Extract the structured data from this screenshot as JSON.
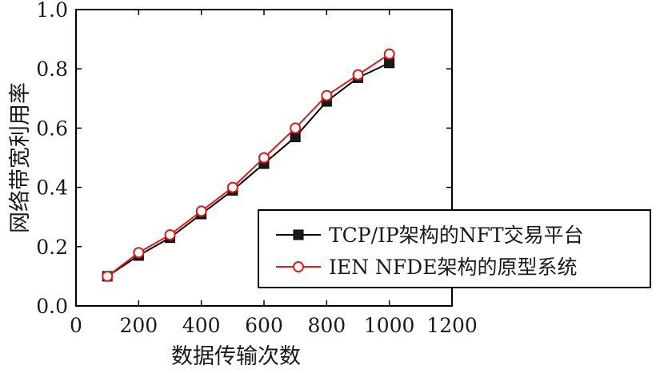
{
  "chart_data": {
    "type": "line",
    "xlabel": "数据传输次数",
    "ylabel": "网络带宽利用率",
    "xlim": [
      0,
      1200
    ],
    "ylim": [
      0,
      1.0
    ],
    "x_ticks": [
      "0",
      "200",
      "400",
      "600",
      "800",
      "1000",
      "1200"
    ],
    "y_ticks": [
      "0.0",
      "0.2",
      "0.4",
      "0.6",
      "0.8",
      "1.0"
    ],
    "x": [
      100,
      200,
      300,
      400,
      500,
      600,
      700,
      800,
      900,
      1000
    ],
    "series": [
      {
        "name": "TCP/IP架构的NFT交易平台",
        "values": [
          0.1,
          0.17,
          0.23,
          0.31,
          0.39,
          0.48,
          0.57,
          0.69,
          0.77,
          0.82
        ],
        "color": "#000000",
        "marker": "square-filled"
      },
      {
        "name": "IEN NFDE架构的原型系统",
        "values": [
          0.1,
          0.18,
          0.24,
          0.32,
          0.4,
          0.5,
          0.6,
          0.71,
          0.78,
          0.85
        ],
        "color": "#d62020",
        "marker": "circle-open"
      }
    ],
    "legend_position": "bottom-right",
    "grid": false
  }
}
